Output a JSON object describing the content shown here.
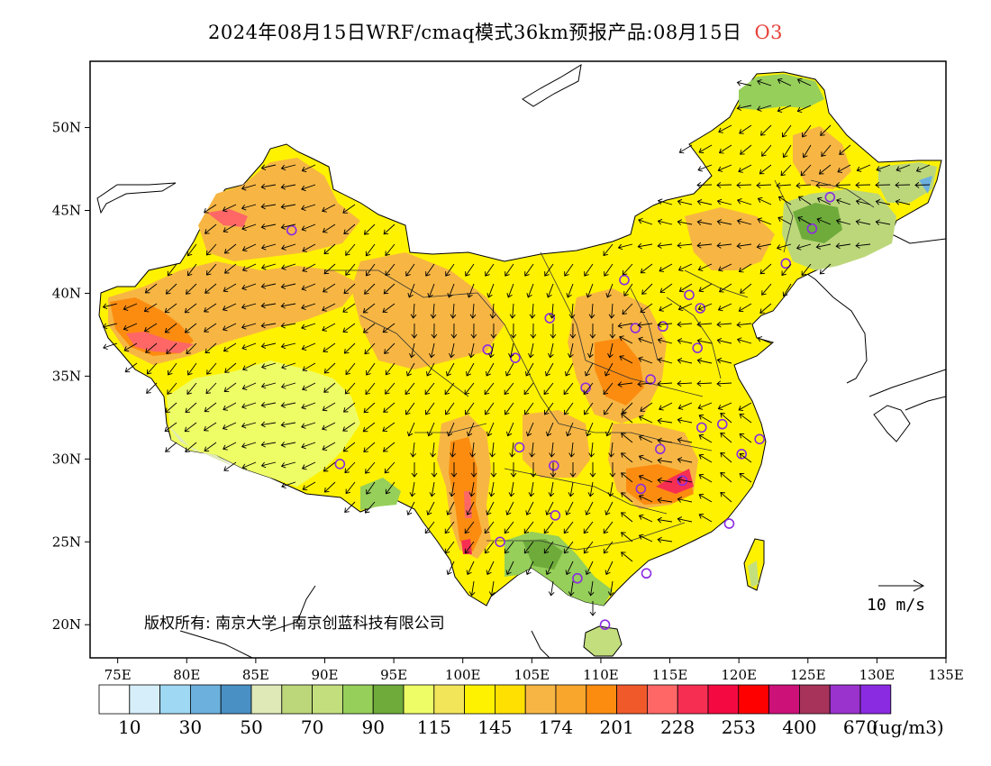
{
  "title": {
    "main": "2024年08月15日WRF/cmaq模式36km预报产品:08月15日",
    "variable": "O3"
  },
  "map": {
    "lon_range": [
      73,
      135
    ],
    "lat_range": [
      18,
      54
    ],
    "x_ticks": [
      "75E",
      "80E",
      "85E",
      "90E",
      "95E",
      "100E",
      "105E",
      "110E",
      "115E",
      "120E",
      "125E",
      "130E",
      "135E"
    ],
    "x_tick_values": [
      75,
      80,
      85,
      90,
      95,
      100,
      105,
      110,
      115,
      120,
      125,
      130,
      135
    ],
    "y_ticks": [
      "50N",
      "45N",
      "40N",
      "35N",
      "30N",
      "25N",
      "20N"
    ],
    "y_tick_values": [
      50,
      45,
      40,
      35,
      30,
      25,
      20
    ],
    "copyright": "版权所有: 南京大学 | 南京创蓝科技有限公司",
    "wind_scale": "10 m/s",
    "stations": [
      [
        87.6,
        43.8
      ],
      [
        91.1,
        29.7
      ],
      [
        101.8,
        36.6
      ],
      [
        103.8,
        36.1
      ],
      [
        106.3,
        38.5
      ],
      [
        104.1,
        30.7
      ],
      [
        106.6,
        29.6
      ],
      [
        106.7,
        26.6
      ],
      [
        102.7,
        25.0
      ],
      [
        108.3,
        22.8
      ],
      [
        110.3,
        20.0
      ],
      [
        113.3,
        23.1
      ],
      [
        112.9,
        28.2
      ],
      [
        114.3,
        30.6
      ],
      [
        115.9,
        28.7
      ],
      [
        119.3,
        26.1
      ],
      [
        120.2,
        30.3
      ],
      [
        121.5,
        31.2
      ],
      [
        118.8,
        32.1
      ],
      [
        117.3,
        31.9
      ],
      [
        113.6,
        34.8
      ],
      [
        108.9,
        34.3
      ],
      [
        112.5,
        37.9
      ],
      [
        114.5,
        38.0
      ],
      [
        116.4,
        39.9
      ],
      [
        117.2,
        39.1
      ],
      [
        117.0,
        36.7
      ],
      [
        111.7,
        40.8
      ],
      [
        123.4,
        41.8
      ],
      [
        125.3,
        43.9
      ],
      [
        126.6,
        45.8
      ]
    ]
  },
  "colorbar": {
    "colors": [
      "#ffffff",
      "#d5eefa",
      "#9fd8f3",
      "#6cb1de",
      "#4990c4",
      "#dfe9b8",
      "#bcd77a",
      "#c3df7d",
      "#96cf5a",
      "#6eab3b",
      "#eefd66",
      "#f3e559",
      "#fff200",
      "#ffe000",
      "#f7b644",
      "#f9a62d",
      "#fc8c10",
      "#f05a2a",
      "#fe6766",
      "#f62e52",
      "#f40a40",
      "#fe0000",
      "#cc1179",
      "#a8335a",
      "#9a32cd",
      "#8a2be2"
    ],
    "labels": [
      "10",
      "30",
      "50",
      "70",
      "90",
      "115",
      "145",
      "174",
      "201",
      "228",
      "253",
      "400",
      "670"
    ],
    "unit": "(ug/m3)"
  }
}
